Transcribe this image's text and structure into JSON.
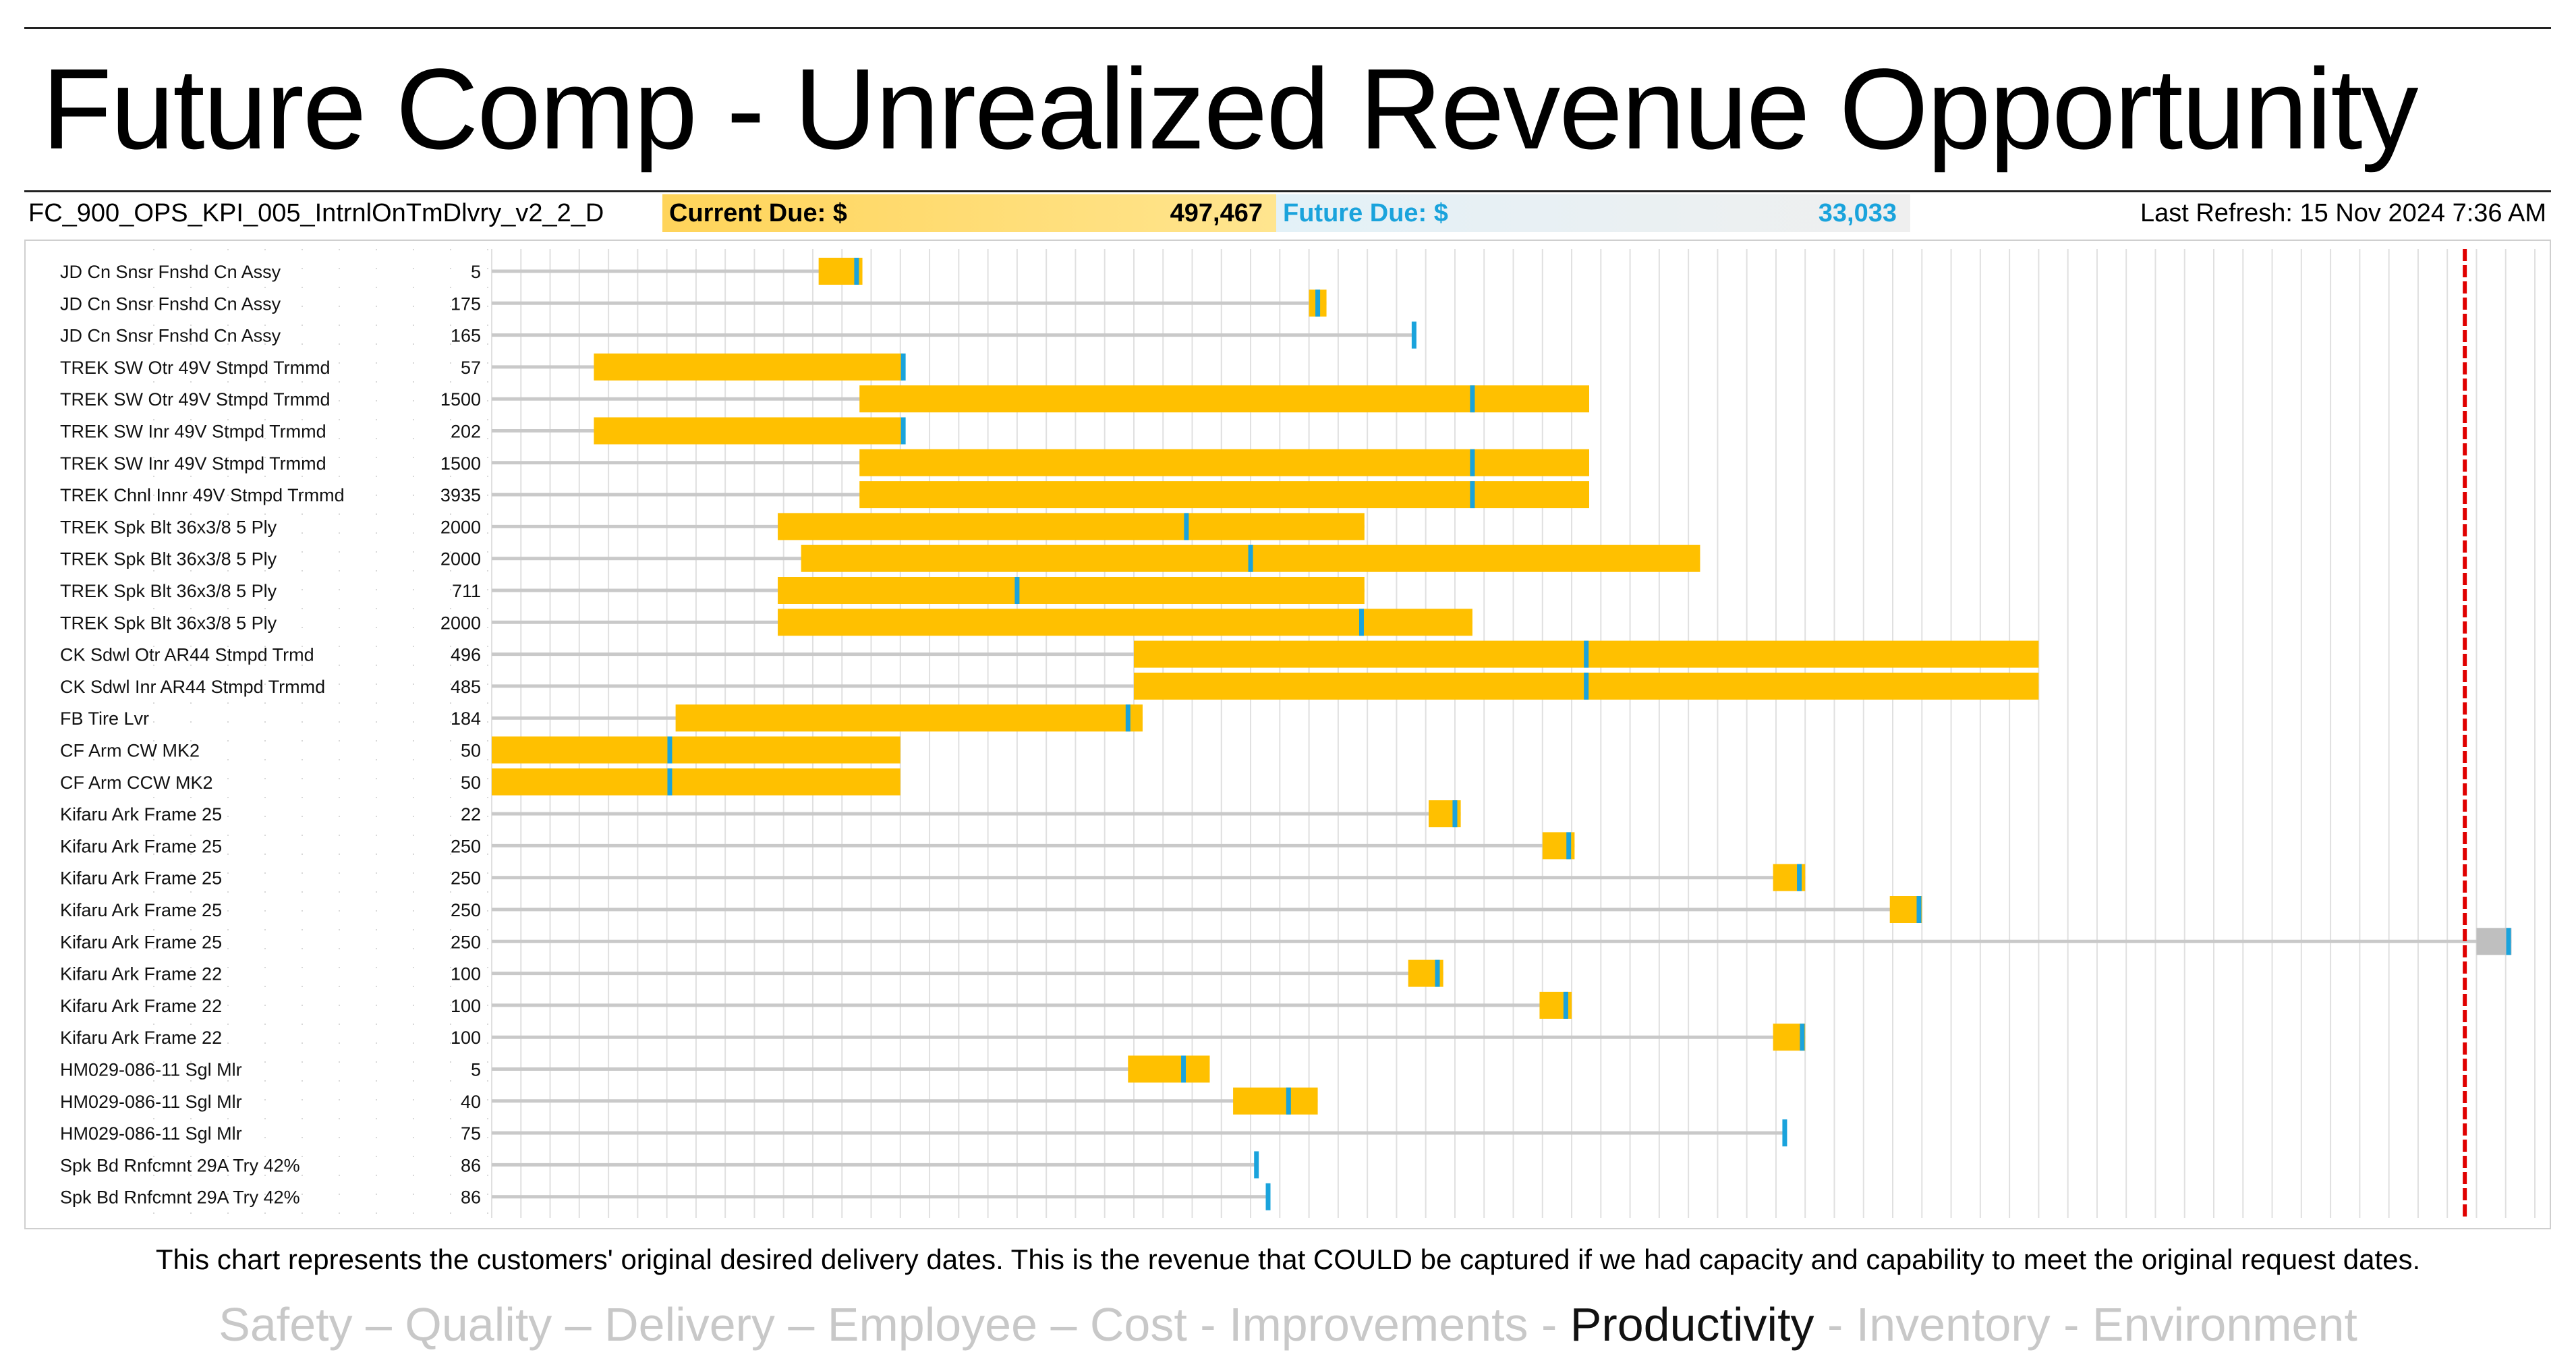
{
  "title": "Future Comp - Unrealized Revenue Opportunity",
  "header": {
    "report_id": "FC_900_OPS_KPI_005_IntrnlOnTmDlvry_v2_2_D",
    "current_due_label": "Current Due: $",
    "current_due_value": "497,467",
    "future_due_label": "Future Due: $",
    "future_due_value": "33,033",
    "last_refresh": "Last Refresh: 15 Nov 2024 7:36 AM"
  },
  "caption": "This chart represents the customers' original desired delivery dates.  This is the revenue that COULD be captured if we had capacity and capability to meet the original request dates.",
  "footer_items": [
    {
      "text": "Safety",
      "active": false
    },
    {
      "text": " – ",
      "active": false
    },
    {
      "text": "Quality",
      "active": false
    },
    {
      "text": " – ",
      "active": false
    },
    {
      "text": "Delivery",
      "active": false
    },
    {
      "text": " – ",
      "active": false
    },
    {
      "text": "Employee",
      "active": false
    },
    {
      "text": " – ",
      "active": false
    },
    {
      "text": "Cost",
      "active": false
    },
    {
      "text": " - ",
      "active": false
    },
    {
      "text": "Improvements",
      "active": false
    },
    {
      "text": " - ",
      "active": false
    },
    {
      "text": "Productivity",
      "active": true
    },
    {
      "text": " - ",
      "active": false
    },
    {
      "text": "Inventory",
      "active": false
    },
    {
      "text": " - ",
      "active": false
    },
    {
      "text": "Environment",
      "active": false
    }
  ],
  "colors": {
    "bar": "#ffc000",
    "bar_future": "#bfbfbf",
    "marker": "#1aa3dc",
    "baseline": "#c9c9c9",
    "today_line": "#e00000",
    "grid": "#e0e0e0"
  },
  "chart_data": {
    "type": "gantt",
    "x_units": "time columns (relative, no axis labels shown)",
    "x_range": [
      0,
      70
    ],
    "today_x": 67.6,
    "grid": true,
    "rows": [
      {
        "label": "JD Cn Snsr Fnshd Cn Assy",
        "qty": "5",
        "start": 11.2,
        "end": 12.7,
        "marker": 12.5,
        "future": false
      },
      {
        "label": "JD Cn Snsr Fnshd Cn Assy",
        "qty": "175",
        "start": 28.0,
        "end": 28.6,
        "marker": 28.3,
        "future": false
      },
      {
        "label": "JD Cn Snsr Fnshd Cn Assy",
        "qty": "165",
        "start": null,
        "end": null,
        "marker": 31.6,
        "future": false
      },
      {
        "label": "TREK SW Otr 49V Stmpd Trmmd",
        "qty": "57",
        "start": 3.5,
        "end": 14.1,
        "marker": 14.1,
        "future": false
      },
      {
        "label": "TREK SW Otr 49V Stmpd Trmmd",
        "qty": "1500",
        "start": 12.6,
        "end": 37.6,
        "marker": 33.6,
        "future": false
      },
      {
        "label": "TREK SW Inr 49V Stmpd Trmmd",
        "qty": "202",
        "start": 3.5,
        "end": 14.1,
        "marker": 14.1,
        "future": false
      },
      {
        "label": "TREK SW Inr 49V Stmpd Trmmd",
        "qty": "1500",
        "start": 12.6,
        "end": 37.6,
        "marker": 33.6,
        "future": false
      },
      {
        "label": "TREK Chnl Innr 49V Stmpd Trmmd",
        "qty": "3935",
        "start": 12.6,
        "end": 37.6,
        "marker": 33.6,
        "future": false
      },
      {
        "label": "TREK Spk Blt 36x3/8 5 Ply",
        "qty": "2000",
        "start": 9.8,
        "end": 29.9,
        "marker": 23.8,
        "future": false
      },
      {
        "label": "TREK Spk Blt 36x3/8 5 Ply",
        "qty": "2000",
        "start": 10.6,
        "end": 41.4,
        "marker": 26.0,
        "future": false
      },
      {
        "label": "TREK Spk Blt 36x3/8 5 Ply",
        "qty": "711",
        "start": 9.8,
        "end": 29.9,
        "marker": 18.0,
        "future": false
      },
      {
        "label": "TREK Spk Blt 36x3/8 5 Ply",
        "qty": "2000",
        "start": 9.8,
        "end": 33.6,
        "marker": 29.8,
        "future": false
      },
      {
        "label": "CK Sdwl Otr AR44 Stmpd Trmd",
        "qty": "496",
        "start": 22.0,
        "end": 53.0,
        "marker": 37.5,
        "future": false
      },
      {
        "label": "CK Sdwl Inr AR44 Stmpd Trmmd",
        "qty": "485",
        "start": 22.0,
        "end": 53.0,
        "marker": 37.5,
        "future": false
      },
      {
        "label": "FB Tire Lvr",
        "qty": "184",
        "start": 6.3,
        "end": 22.3,
        "marker": 21.8,
        "future": false
      },
      {
        "label": "CF Arm CW MK2",
        "qty": "50",
        "start": 0.0,
        "end": 14.0,
        "marker": 6.1,
        "future": false
      },
      {
        "label": "CF Arm CCW MK2",
        "qty": "50",
        "start": 0.0,
        "end": 14.0,
        "marker": 6.1,
        "future": false
      },
      {
        "label": "Kifaru Ark Frame 25",
        "qty": "22",
        "start": 32.1,
        "end": 33.2,
        "marker": 33.0,
        "future": false
      },
      {
        "label": "Kifaru Ark Frame 25",
        "qty": "250",
        "start": 36.0,
        "end": 37.1,
        "marker": 36.9,
        "future": false
      },
      {
        "label": "Kifaru Ark Frame 25",
        "qty": "250",
        "start": 43.9,
        "end": 45.0,
        "marker": 44.8,
        "future": false
      },
      {
        "label": "Kifaru Ark Frame 25",
        "qty": "250",
        "start": 47.9,
        "end": 49.0,
        "marker": 48.9,
        "future": false
      },
      {
        "label": "Kifaru Ark Frame 25",
        "qty": "250",
        "start": 68.0,
        "end": 69.2,
        "marker": 69.1,
        "future": true
      },
      {
        "label": "Kifaru Ark Frame 22",
        "qty": "100",
        "start": 31.4,
        "end": 32.6,
        "marker": 32.4,
        "future": false
      },
      {
        "label": "Kifaru Ark Frame 22",
        "qty": "100",
        "start": 35.9,
        "end": 37.0,
        "marker": 36.8,
        "future": false
      },
      {
        "label": "Kifaru Ark Frame 22",
        "qty": "100",
        "start": 43.9,
        "end": 45.0,
        "marker": 44.9,
        "future": false
      },
      {
        "label": "HM029-086-11 Sgl Mlr",
        "qty": "5",
        "start": 21.8,
        "end": 24.6,
        "marker": 23.7,
        "future": false
      },
      {
        "label": "HM029-086-11 Sgl Mlr",
        "qty": "40",
        "start": 25.4,
        "end": 28.3,
        "marker": 27.3,
        "future": false
      },
      {
        "label": "HM029-086-11 Sgl Mlr",
        "qty": "75",
        "start": null,
        "end": null,
        "marker": 44.3,
        "future": false
      },
      {
        "label": "Spk Bd Rnfcmnt 29A Try 42%",
        "qty": "86",
        "start": null,
        "end": null,
        "marker": 26.2,
        "future": false
      },
      {
        "label": "Spk Bd Rnfcmnt 29A Try 42%",
        "qty": "86",
        "start": null,
        "end": null,
        "marker": 26.6,
        "future": false
      }
    ]
  }
}
